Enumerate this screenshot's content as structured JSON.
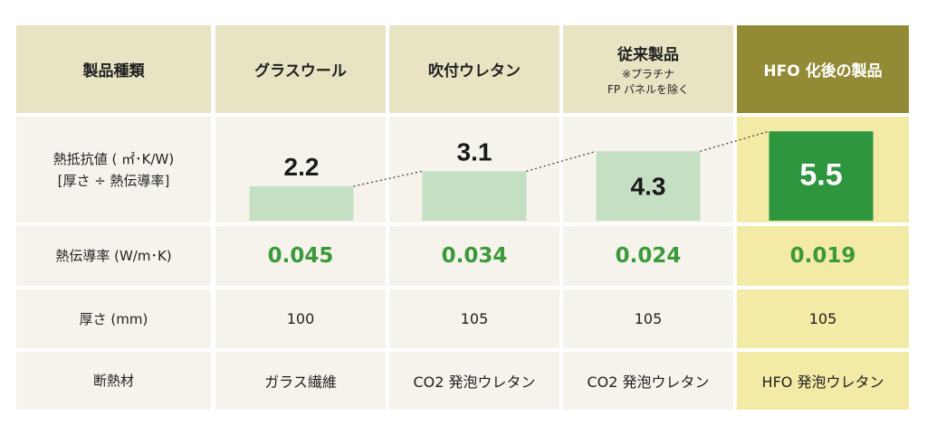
{
  "headers": {
    "category": "製品種類",
    "glass_wool": "グラスウール",
    "spray_urethane": "吹付ウレタン",
    "conventional": "従来製品",
    "conventional_note_1": "※プラチナ",
    "conventional_note_2": "FP パネルを除く",
    "hfo": "HFO 化後の製品"
  },
  "rows": {
    "r_value_label_1": "熱抵抗値 ( ㎡･K/W)",
    "r_value_label_2": "[厚さ ÷ 熱伝導率]",
    "conductivity_label": "熱伝導率 (W/m･K)",
    "thickness_label": "厚さ (mm)",
    "material_label": "断熱材"
  },
  "conductivity": [
    "0.045",
    "0.034",
    "0.024",
    "0.019"
  ],
  "thickness": [
    "100",
    "105",
    "105",
    "105"
  ],
  "material": [
    "ガラス繊維",
    "CO2 発泡ウレタン",
    "CO2 発泡ウレタン",
    "HFO 発泡ウレタン"
  ],
  "chart_data": {
    "type": "bar",
    "categories": [
      "グラスウール",
      "吹付ウレタン",
      "従来製品",
      "HFO 化後の製品"
    ],
    "values": [
      2.2,
      3.1,
      4.3,
      5.5
    ],
    "value_labels": [
      "2.2",
      "3.1",
      "4.3",
      "5.5"
    ],
    "ylabel": "熱抵抗値 ( ㎡･K/W)",
    "ylim": [
      0,
      5.5
    ],
    "colors": {
      "bar": "#c5dfc3",
      "bar_highlight": "#2f9640",
      "trend_line": "#333333",
      "value_green": "#3a9a3a",
      "header_bg": "#e8e3c3",
      "header_highlight_bg": "#938a35",
      "body_bg": "#f6f3ec",
      "body_highlight_bg": "#f2eaa5"
    },
    "trend_line": "dotted",
    "grid": false
  }
}
